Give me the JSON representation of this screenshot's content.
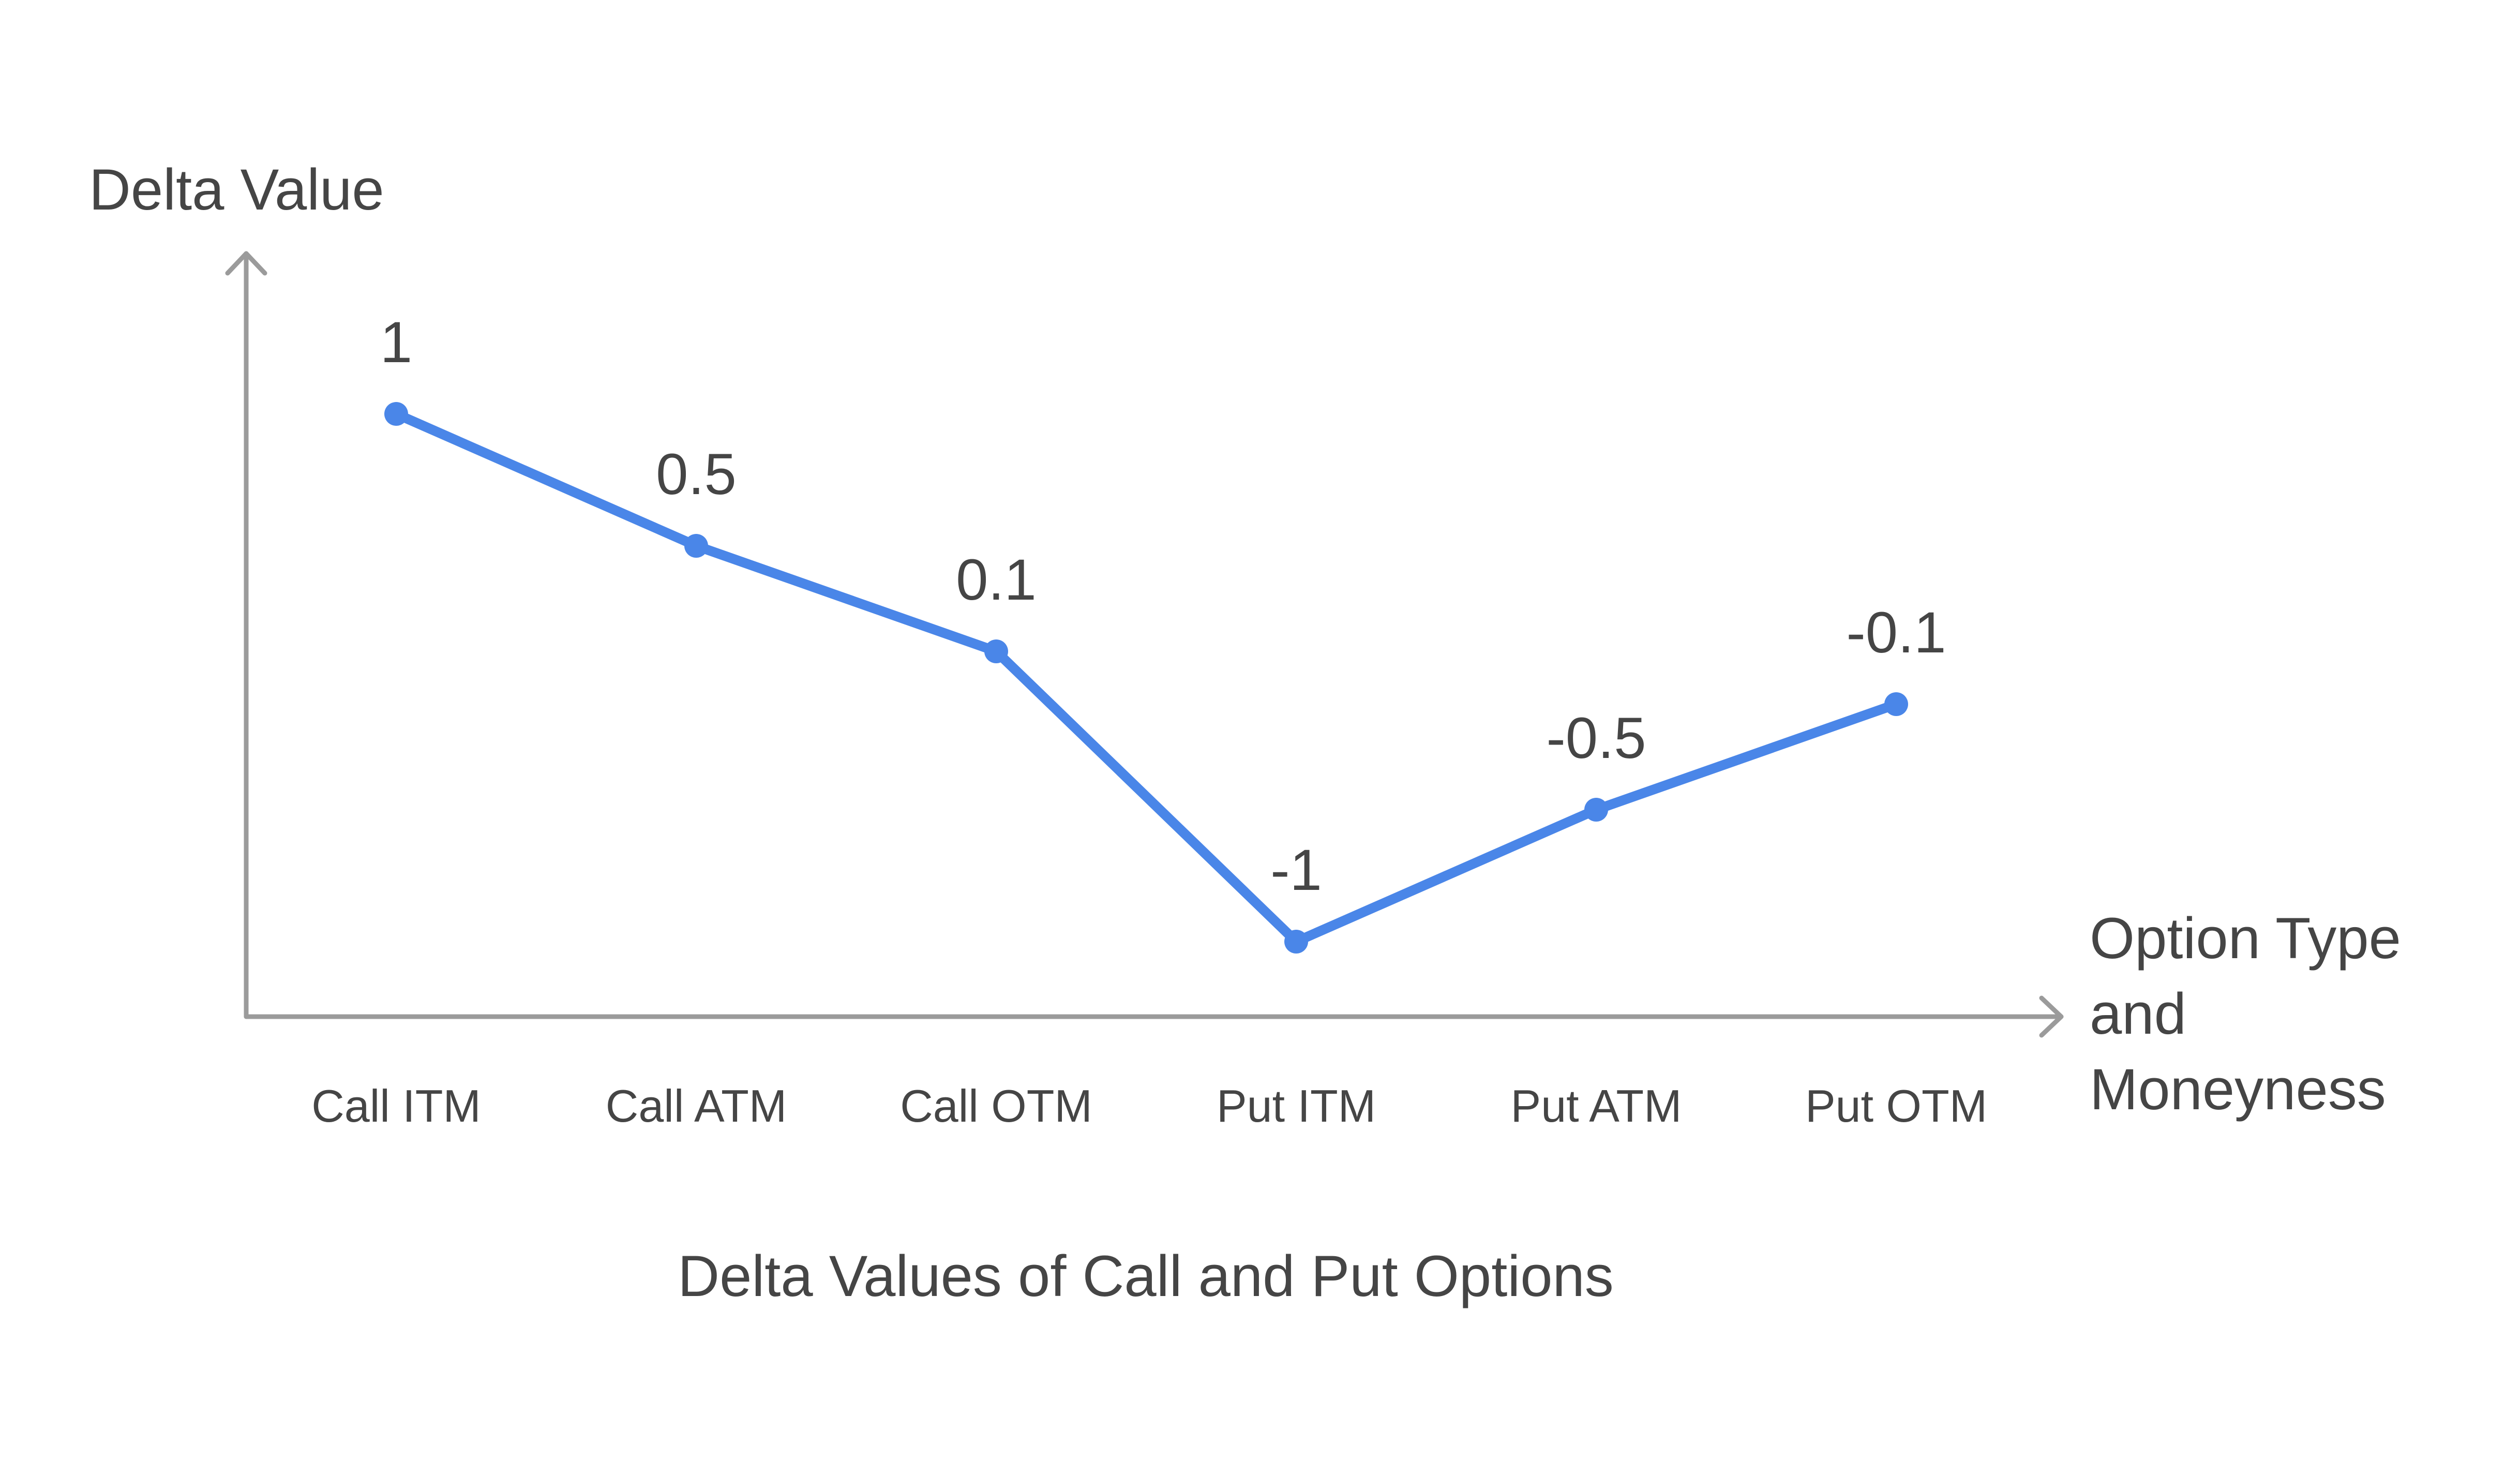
{
  "chart_data": {
    "type": "line",
    "title": "Delta Values of Call and Put Options",
    "xlabel": "Option Type and Moneyness",
    "xlabel_lines": [
      "Option Type",
      "and",
      "Moneyness"
    ],
    "ylabel": "Delta Value",
    "categories": [
      "Call ITM",
      "Call ATM",
      "Call OTM",
      "Put ITM",
      "Put ATM",
      "Put OTM"
    ],
    "series": [
      {
        "values": [
          1,
          0.5,
          0.1,
          -1,
          -0.5,
          -0.1
        ],
        "data_labels": [
          "1",
          "0.5",
          "0.1",
          "-1",
          "-0.5",
          "-0.1"
        ],
        "color": "#4a86e8"
      }
    ],
    "ylim": [
      -1.28,
      1.28
    ],
    "grid": false,
    "legend": "none"
  }
}
